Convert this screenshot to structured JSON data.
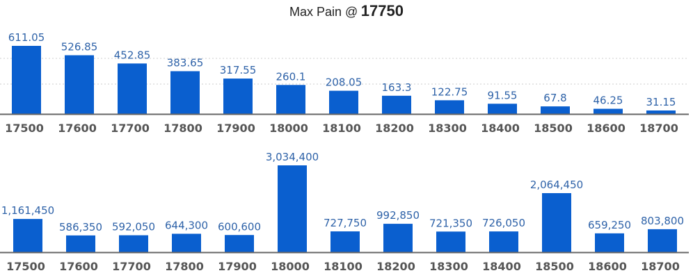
{
  "header": {
    "title_prefix": "Max Pain @",
    "title_value": "17750"
  },
  "colors": {
    "bar": "#0a5fcf",
    "axis": "#666666",
    "grid": "#cccccc",
    "label": "#2e62a8",
    "tick": "#555555"
  },
  "chart_data": [
    {
      "type": "bar",
      "categories": [
        "17500",
        "17600",
        "17700",
        "17800",
        "17900",
        "18000",
        "18100",
        "18200",
        "18300",
        "18400",
        "18500",
        "18600",
        "18700"
      ],
      "values": [
        611.05,
        526.85,
        452.85,
        383.65,
        317.55,
        260.1,
        208.05,
        163.3,
        122.75,
        91.55,
        67.8,
        46.25,
        31.15
      ],
      "labels": [
        "611.05",
        "526.85",
        "452.85",
        "383.65",
        "317.55",
        "260.1",
        "208.05",
        "163.3",
        "122.75",
        "91.55",
        "67.8",
        "46.25",
        "31.15"
      ],
      "grid": true
    },
    {
      "type": "bar",
      "categories": [
        "17500",
        "17600",
        "17700",
        "17800",
        "17900",
        "18000",
        "18100",
        "18200",
        "18300",
        "18400",
        "18500",
        "18600",
        "18700"
      ],
      "values": [
        1161450,
        586350,
        592050,
        644300,
        600600,
        3034400,
        727750,
        992850,
        721350,
        726050,
        2064450,
        659250,
        803800
      ],
      "labels": [
        "1,161,450",
        "586,350",
        "592,050",
        "644,300",
        "600,600",
        "3,034,400",
        "727,750",
        "992,850",
        "721,350",
        "726,050",
        "2,064,450",
        "659,250",
        "803,800"
      ],
      "grid": false
    }
  ]
}
